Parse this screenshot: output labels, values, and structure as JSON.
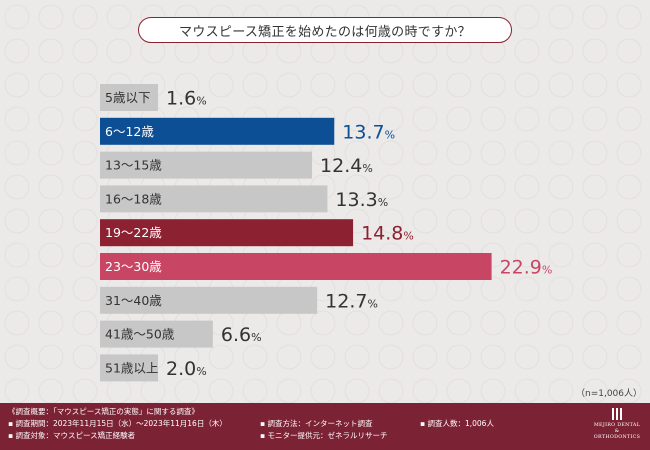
{
  "header": {
    "title": "マウスピース矯正を始めたのは何歳の時ですか？"
  },
  "chart_data": {
    "type": "bar",
    "orientation": "horizontal",
    "unit": "%",
    "xlim": [
      0,
      30
    ],
    "categories": [
      "5歳以下",
      "6～12歳",
      "13～15歳",
      "16～18歳",
      "19～22歳",
      "23～30歳",
      "31～40歳",
      "41歳～50歳",
      "51歳以上"
    ],
    "values": [
      1.6,
      13.7,
      12.4,
      13.3,
      14.8,
      22.9,
      12.7,
      6.6,
      2.0
    ],
    "value_labels": [
      "1.6",
      "13.7",
      "12.4",
      "13.3",
      "14.8",
      "22.9",
      "12.7",
      "6.6",
      "2.0"
    ],
    "colors": [
      "#c7c7c7",
      "#0d4f95",
      "#c7c7c7",
      "#c7c7c7",
      "#8b2131",
      "#c84664",
      "#c7c7c7",
      "#c7c7c7",
      "#c7c7c7"
    ],
    "label_colors": [
      "#333333",
      "#ffffff",
      "#333333",
      "#333333",
      "#ffffff",
      "#ffffff",
      "#333333",
      "#333333",
      "#333333"
    ],
    "value_colors": [
      "#333333",
      "#0d4f95",
      "#333333",
      "#333333",
      "#8b2131",
      "#c84664",
      "#333333",
      "#333333",
      "#333333"
    ]
  },
  "sample_size": "（n=1,006人）",
  "footer": {
    "heading": "《調査概要：「マウスピース矯正の実態」に関する調査》",
    "period": "▪ 調査期間：2023年11月15日（水）～2023年11月16日（木）",
    "target": "▪ 調査対象：マウスピース矯正経験者",
    "method": "▪ 調査方法：インターネット調査",
    "count": "▪ 調査人数：1,006人",
    "provider": "▪ モニター提供元：ゼネラルリサーチ"
  },
  "logo": {
    "line1": "MEJIRO DENTAL",
    "line2": "& ORTHODONTICS"
  }
}
